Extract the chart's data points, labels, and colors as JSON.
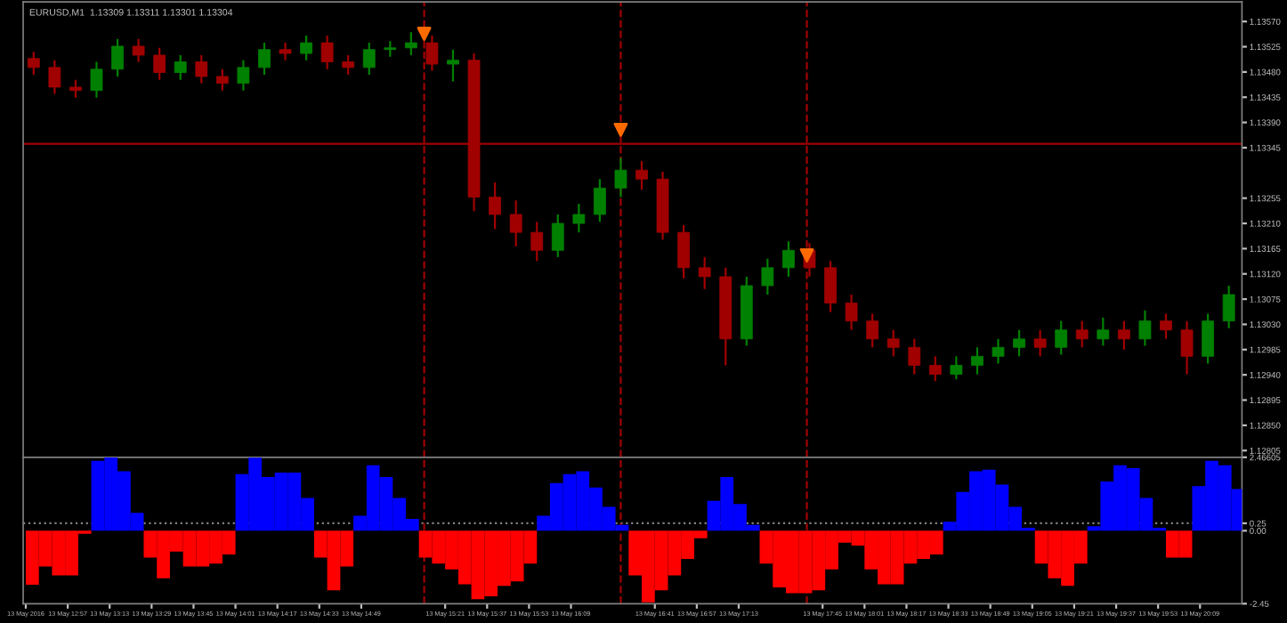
{
  "chart_data": [
    {
      "type": "candlestick",
      "subtitle": "EURUSD,M1  1.13309 1.13311 1.13301 1.13304",
      "x": [
        "2016-05-13T12:44",
        "2016-05-13T12:52",
        "2016-05-13T13:00",
        "2016-05-13T13:08",
        "2016-05-13T13:16",
        "2016-05-13T13:24",
        "2016-05-13T13:32",
        "2016-05-13T13:40",
        "2016-05-13T13:48",
        "2016-05-13T13:56",
        "2016-05-13T14:04",
        "2016-05-13T14:12",
        "2016-05-13T14:20",
        "2016-05-13T14:28",
        "2016-05-13T14:36",
        "2016-05-13T14:44",
        "2016-05-13T14:52",
        "2016-05-13T15:00",
        "2016-05-13T15:08",
        "2016-05-13T15:16",
        "2016-05-13T15:24",
        "2016-05-13T15:32",
        "2016-05-13T15:40",
        "2016-05-13T15:48",
        "2016-05-13T15:56",
        "2016-05-13T16:04",
        "2016-05-13T16:12",
        "2016-05-13T16:20",
        "2016-05-13T16:28",
        "2016-05-13T16:36",
        "2016-05-13T16:44",
        "2016-05-13T16:52",
        "2016-05-13T17:00",
        "2016-05-13T17:08",
        "2016-05-13T17:16",
        "2016-05-13T17:24",
        "2016-05-13T17:32",
        "2016-05-13T17:40",
        "2016-05-13T17:48",
        "2016-05-13T17:56",
        "2016-05-13T18:04",
        "2016-05-13T18:12",
        "2016-05-13T18:20",
        "2016-05-13T18:28",
        "2016-05-13T18:36",
        "2016-05-13T18:44",
        "2016-05-13T18:52",
        "2016-05-13T19:00",
        "2016-05-13T19:08",
        "2016-05-13T19:16",
        "2016-05-13T19:24",
        "2016-05-13T19:32",
        "2016-05-13T19:40",
        "2016-05-13T19:48",
        "2016-05-13T19:56",
        "2016-05-13T20:04",
        "2016-05-13T20:12",
        "2016-05-13T20:20"
      ],
      "ohlc": [
        [
          1.13504,
          1.13516,
          1.13475,
          1.13488
        ],
        [
          1.13488,
          1.13501,
          1.13441,
          1.13453
        ],
        [
          1.13453,
          1.13466,
          1.13434,
          1.13447
        ],
        [
          1.13447,
          1.13498,
          1.13434,
          1.13485
        ],
        [
          1.13485,
          1.13539,
          1.13472,
          1.13526
        ],
        [
          1.13526,
          1.13539,
          1.13498,
          1.1351
        ],
        [
          1.1351,
          1.13523,
          1.13466,
          1.13479
        ],
        [
          1.13479,
          1.1351,
          1.13466,
          1.13498
        ],
        [
          1.13498,
          1.1351,
          1.1346,
          1.13472
        ],
        [
          1.13472,
          1.13485,
          1.13447,
          1.1346
        ],
        [
          1.1346,
          1.13501,
          1.13447,
          1.13488
        ],
        [
          1.13488,
          1.13532,
          1.13475,
          1.1352
        ],
        [
          1.1352,
          1.13532,
          1.13501,
          1.13513
        ],
        [
          1.13513,
          1.13545,
          1.13501,
          1.13532
        ],
        [
          1.13532,
          1.13545,
          1.13485,
          1.13498
        ],
        [
          1.13498,
          1.1351,
          1.13475,
          1.13488
        ],
        [
          1.13488,
          1.13532,
          1.13475,
          1.1352
        ],
        [
          1.1352,
          1.13535,
          1.13507,
          1.13523
        ],
        [
          1.13523,
          1.13551,
          1.1351,
          1.13532
        ],
        [
          1.13532,
          1.13545,
          1.13482,
          1.13494
        ],
        [
          1.13494,
          1.1352,
          1.13463,
          1.13501
        ],
        [
          1.13501,
          1.13513,
          1.13232,
          1.13257
        ],
        [
          1.13257,
          1.13283,
          1.132,
          1.13226
        ],
        [
          1.13226,
          1.13251,
          1.13169,
          1.13194
        ],
        [
          1.13194,
          1.13213,
          1.13143,
          1.13162
        ],
        [
          1.13162,
          1.13226,
          1.1315,
          1.1321
        ],
        [
          1.1321,
          1.13245,
          1.13194,
          1.13226
        ],
        [
          1.13226,
          1.13289,
          1.13213,
          1.13273
        ],
        [
          1.13273,
          1.13327,
          1.13257,
          1.13305
        ],
        [
          1.13305,
          1.13321,
          1.1327,
          1.13289
        ],
        [
          1.13289,
          1.13302,
          1.13181,
          1.13194
        ],
        [
          1.13194,
          1.13207,
          1.13112,
          1.13131
        ],
        [
          1.13131,
          1.1315,
          1.13093,
          1.13115
        ],
        [
          1.13115,
          1.13131,
          1.12957,
          1.13004
        ],
        [
          1.13004,
          1.13115,
          1.12992,
          1.13099
        ],
        [
          1.13099,
          1.13147,
          1.13083,
          1.13131
        ],
        [
          1.13131,
          1.13178,
          1.13115,
          1.13162
        ],
        [
          1.13162,
          1.13175,
          1.13115,
          1.13131
        ],
        [
          1.13131,
          1.13143,
          1.13052,
          1.13068
        ],
        [
          1.13068,
          1.13083,
          1.1302,
          1.13036
        ],
        [
          1.13036,
          1.13049,
          1.12989,
          1.13004
        ],
        [
          1.13004,
          1.1302,
          1.12973,
          1.12989
        ],
        [
          1.12989,
          1.13004,
          1.12941,
          1.12957
        ],
        [
          1.12957,
          1.12973,
          1.12929,
          1.12941
        ],
        [
          1.12941,
          1.12973,
          1.12932,
          1.12957
        ],
        [
          1.12957,
          1.12989,
          1.12941,
          1.12973
        ],
        [
          1.12973,
          1.13004,
          1.1296,
          1.12989
        ],
        [
          1.12989,
          1.1302,
          1.12973,
          1.13004
        ],
        [
          1.13004,
          1.1302,
          1.12973,
          1.12989
        ],
        [
          1.12989,
          1.13036,
          1.12976,
          1.1302
        ],
        [
          1.1302,
          1.13036,
          1.12989,
          1.13004
        ],
        [
          1.13004,
          1.13042,
          1.12992,
          1.1302
        ],
        [
          1.1302,
          1.13036,
          1.12985,
          1.13004
        ],
        [
          1.13004,
          1.13055,
          1.12992,
          1.13036
        ],
        [
          1.13036,
          1.13049,
          1.13004,
          1.1302
        ],
        [
          1.1302,
          1.13036,
          1.12941,
          1.12973
        ],
        [
          1.12973,
          1.13049,
          1.1296,
          1.13036
        ],
        [
          1.13036,
          1.13099,
          1.13023,
          1.13083
        ]
      ],
      "colors": [
        "#a00000",
        "#a00000",
        "#a00000",
        "#008000",
        "#008000",
        "#a00000",
        "#a00000",
        "#008000",
        "#a00000",
        "#a00000",
        "#008000",
        "#008000",
        "#a00000",
        "#008000",
        "#a00000",
        "#a00000",
        "#008000",
        "#008000",
        "#008000",
        "#a00000",
        "#008000",
        "#a00000",
        "#a00000",
        "#a00000",
        "#a00000",
        "#008000",
        "#008000",
        "#008000",
        "#008000",
        "#a00000",
        "#a00000",
        "#a00000",
        "#a00000",
        "#a00000",
        "#008000",
        "#008000",
        "#008000",
        "#a00000",
        "#a00000",
        "#a00000",
        "#a00000",
        "#a00000",
        "#a00000",
        "#a00000",
        "#008000",
        "#008000",
        "#008000",
        "#008000",
        "#a00000",
        "#008000",
        "#a00000",
        "#008000",
        "#a00000",
        "#008000",
        "#a00000",
        "#a00000",
        "#008000",
        "#008000"
      ],
      "series": [
        {
          "type": "scatter",
          "color": "#ff6a00",
          "marker": "triangle",
          "x": [
            "2016-05-13T15:13",
            "2016-05-13T16:28",
            "2016-05-13T17:39"
          ],
          "values": [
            1.13548,
            1.13377,
            1.13153
          ]
        }
      ],
      "xlim": [
        "2016-05-13T12:40",
        "2016-05-13T20:25"
      ],
      "ylim": [
        1.12793,
        1.13605
      ],
      "yticks": [
        {
          "value": 1.1357,
          "label": "1.13570"
        },
        {
          "value": 1.13525,
          "label": "1.13525"
        },
        {
          "value": 1.1348,
          "label": "1.13480"
        },
        {
          "value": 1.13435,
          "label": "1.13435"
        },
        {
          "value": 1.1339,
          "label": "1.13390"
        },
        {
          "value": 1.13345,
          "label": "1.13345"
        },
        {
          "value": 1.13255,
          "label": "1.13255"
        },
        {
          "value": 1.1321,
          "label": "1.13210"
        },
        {
          "value": 1.13165,
          "label": "1.13165"
        },
        {
          "value": 1.1312,
          "label": "1.13120"
        },
        {
          "value": 1.13075,
          "label": "1.13075"
        },
        {
          "value": 1.1303,
          "label": "1.13030"
        },
        {
          "value": 1.12985,
          "label": "1.12985"
        },
        {
          "value": 1.1294,
          "label": "1.12940"
        },
        {
          "value": 1.12895,
          "label": "1.12895"
        },
        {
          "value": 1.1285,
          "label": "1.12850"
        },
        {
          "value": 1.12805,
          "label": "1.12805"
        }
      ],
      "tick_labels": "y",
      "ref_lines": [
        {
          "axis": "y",
          "value": 1.13352,
          "color": "#a00000",
          "line_style": "solid"
        },
        {
          "axis": "x",
          "value": "2016-05-13T15:13",
          "color": "#a00000",
          "line_style": "dashed"
        },
        {
          "axis": "x",
          "value": "2016-05-13T16:28",
          "color": "#a00000",
          "line_style": "dashed"
        },
        {
          "axis": "x",
          "value": "2016-05-13T17:39",
          "color": "#a00000",
          "line_style": "dashed"
        }
      ]
    },
    {
      "type": "bar",
      "x": [
        "2016-05-13T12:41",
        "2016-05-13T12:46",
        "2016-05-13T12:51",
        "2016-05-13T12:56",
        "2016-05-13T13:01",
        "2016-05-13T13:06",
        "2016-05-13T13:11",
        "2016-05-13T13:16",
        "2016-05-13T13:21",
        "2016-05-13T13:26",
        "2016-05-13T13:31",
        "2016-05-13T13:36",
        "2016-05-13T13:41",
        "2016-05-13T13:46",
        "2016-05-13T13:51",
        "2016-05-13T13:56",
        "2016-05-13T14:01",
        "2016-05-13T14:06",
        "2016-05-13T14:11",
        "2016-05-13T14:16",
        "2016-05-13T14:21",
        "2016-05-13T14:26",
        "2016-05-13T14:31",
        "2016-05-13T14:36",
        "2016-05-13T14:41",
        "2016-05-13T14:46",
        "2016-05-13T14:51",
        "2016-05-13T14:56",
        "2016-05-13T15:01",
        "2016-05-13T15:06",
        "2016-05-13T15:11",
        "2016-05-13T15:16",
        "2016-05-13T15:21",
        "2016-05-13T15:26",
        "2016-05-13T15:31",
        "2016-05-13T15:36",
        "2016-05-13T15:41",
        "2016-05-13T15:46",
        "2016-05-13T15:51",
        "2016-05-13T15:56",
        "2016-05-13T16:01",
        "2016-05-13T16:06",
        "2016-05-13T16:11",
        "2016-05-13T16:16",
        "2016-05-13T16:21",
        "2016-05-13T16:26",
        "2016-05-13T16:31",
        "2016-05-13T16:36",
        "2016-05-13T16:41",
        "2016-05-13T16:46",
        "2016-05-13T16:51",
        "2016-05-13T16:56",
        "2016-05-13T17:01",
        "2016-05-13T17:06",
        "2016-05-13T17:11",
        "2016-05-13T17:16",
        "2016-05-13T17:21",
        "2016-05-13T17:26",
        "2016-05-13T17:31",
        "2016-05-13T17:36",
        "2016-05-13T17:41",
        "2016-05-13T17:46",
        "2016-05-13T17:51",
        "2016-05-13T17:56",
        "2016-05-13T18:01",
        "2016-05-13T18:06",
        "2016-05-13T18:11",
        "2016-05-13T18:16",
        "2016-05-13T18:21",
        "2016-05-13T18:26",
        "2016-05-13T18:31",
        "2016-05-13T18:36",
        "2016-05-13T18:41",
        "2016-05-13T18:46",
        "2016-05-13T18:51",
        "2016-05-13T18:56",
        "2016-05-13T19:01",
        "2016-05-13T19:06",
        "2016-05-13T19:11",
        "2016-05-13T19:16",
        "2016-05-13T19:21",
        "2016-05-13T19:26",
        "2016-05-13T19:31",
        "2016-05-13T19:36",
        "2016-05-13T19:41",
        "2016-05-13T19:46",
        "2016-05-13T19:51",
        "2016-05-13T19:56",
        "2016-05-13T20:01",
        "2016-05-13T20:06",
        "2016-05-13T20:11",
        "2016-05-13T20:16",
        "2016-05-13T20:21"
      ],
      "values": [
        -1.81,
        -1.2,
        -1.5,
        -1.5,
        -0.1,
        2.35,
        2.46,
        2.0,
        0.6,
        -0.9,
        -1.6,
        -0.7,
        -1.2,
        -1.2,
        -1.1,
        -0.8,
        1.9,
        2.45,
        1.8,
        1.95,
        1.95,
        1.1,
        -0.9,
        -2.0,
        -1.2,
        0.5,
        2.2,
        1.8,
        1.1,
        0.4,
        -0.9,
        -1.1,
        -1.3,
        -1.8,
        -2.3,
        -2.2,
        -1.85,
        -1.7,
        -1.1,
        0.5,
        1.6,
        1.9,
        2.0,
        1.45,
        0.8,
        0.2,
        -1.5,
        -2.4,
        -2.0,
        -1.5,
        -0.95,
        -0.25,
        1.0,
        1.8,
        0.9,
        0.2,
        -1.1,
        -1.9,
        -2.1,
        -2.1,
        -2.0,
        -1.3,
        -0.4,
        -0.5,
        -1.3,
        -1.8,
        -1.8,
        -1.1,
        -0.95,
        -0.8,
        0.3,
        1.3,
        2.0,
        2.05,
        1.55,
        0.8,
        0.1,
        -1.1,
        -1.6,
        -1.85,
        -1.1,
        0.15,
        1.65,
        2.2,
        2.1,
        1.1,
        0.1,
        -0.9,
        -0.9,
        1.5,
        2.35,
        2.2,
        1.4
      ],
      "colors": [
        "#ff0000",
        "#ff0000",
        "#ff0000",
        "#ff0000",
        "#ff0000",
        "#0000ff",
        "#0000ff",
        "#0000ff",
        "#0000ff",
        "#ff0000",
        "#ff0000",
        "#ff0000",
        "#ff0000",
        "#ff0000",
        "#ff0000",
        "#ff0000",
        "#0000ff",
        "#0000ff",
        "#0000ff",
        "#0000ff",
        "#0000ff",
        "#0000ff",
        "#ff0000",
        "#ff0000",
        "#ff0000",
        "#0000ff",
        "#0000ff",
        "#0000ff",
        "#0000ff",
        "#0000ff",
        "#ff0000",
        "#ff0000",
        "#ff0000",
        "#ff0000",
        "#ff0000",
        "#ff0000",
        "#ff0000",
        "#ff0000",
        "#ff0000",
        "#0000ff",
        "#0000ff",
        "#0000ff",
        "#0000ff",
        "#0000ff",
        "#0000ff",
        "#0000ff",
        "#ff0000",
        "#ff0000",
        "#ff0000",
        "#ff0000",
        "#ff0000",
        "#ff0000",
        "#0000ff",
        "#0000ff",
        "#0000ff",
        "#0000ff",
        "#ff0000",
        "#ff0000",
        "#ff0000",
        "#ff0000",
        "#ff0000",
        "#ff0000",
        "#ff0000",
        "#ff0000",
        "#ff0000",
        "#ff0000",
        "#ff0000",
        "#ff0000",
        "#ff0000",
        "#ff0000",
        "#0000ff",
        "#0000ff",
        "#0000ff",
        "#0000ff",
        "#0000ff",
        "#0000ff",
        "#0000ff",
        "#ff0000",
        "#ff0000",
        "#ff0000",
        "#ff0000",
        "#0000ff",
        "#0000ff",
        "#0000ff",
        "#0000ff",
        "#0000ff",
        "#0000ff",
        "#ff0000",
        "#ff0000",
        "#0000ff",
        "#0000ff",
        "#0000ff",
        "#0000ff"
      ],
      "xlim": [
        "2016-05-13T12:40",
        "2016-05-13T20:25"
      ],
      "xticks": [
        {
          "value": "2016-05-13T12:41",
          "label": "13 May 2016"
        },
        {
          "value": "2016-05-13T12:57",
          "label": "13 May 12:57"
        },
        {
          "value": "2016-05-13T13:13",
          "label": "13 May 13:13"
        },
        {
          "value": "2016-05-13T13:29",
          "label": "13 May 13:29"
        },
        {
          "value": "2016-05-13T13:45",
          "label": "13 May 13:45"
        },
        {
          "value": "2016-05-13T14:01",
          "label": "13 May 14:01"
        },
        {
          "value": "2016-05-13T14:17",
          "label": "13 May 14:17"
        },
        {
          "value": "2016-05-13T14:33",
          "label": "13 May 14:33"
        },
        {
          "value": "2016-05-13T14:49",
          "label": "13 May 14:49"
        },
        {
          "value": "2016-05-13T15:21",
          "label": "13 May 15:21"
        },
        {
          "value": "2016-05-13T15:37",
          "label": "13 May 15:37"
        },
        {
          "value": "2016-05-13T15:53",
          "label": "13 May 15:53"
        },
        {
          "value": "2016-05-13T16:09",
          "label": "13 May 16:09"
        },
        {
          "value": "2016-05-13T16:41",
          "label": "13 May 16:41"
        },
        {
          "value": "2016-05-13T16:57",
          "label": "13 May 16:57"
        },
        {
          "value": "2016-05-13T17:13",
          "label": "13 May 17:13"
        },
        {
          "value": "2016-05-13T17:45",
          "label": "13 May 17:45"
        },
        {
          "value": "2016-05-13T18:01",
          "label": "13 May 18:01"
        },
        {
          "value": "2016-05-13T18:17",
          "label": "13 May 18:17"
        },
        {
          "value": "2016-05-13T18:33",
          "label": "13 May 18:33"
        },
        {
          "value": "2016-05-13T18:49",
          "label": "13 May 18:49"
        },
        {
          "value": "2016-05-13T19:05",
          "label": "13 May 19:05"
        },
        {
          "value": "2016-05-13T19:21",
          "label": "13 May 19:21"
        },
        {
          "value": "2016-05-13T19:37",
          "label": "13 May 19:37"
        },
        {
          "value": "2016-05-13T19:53",
          "label": "13 May 19:53"
        },
        {
          "value": "2016-05-13T20:09",
          "label": "13 May 20:09"
        }
      ],
      "ylim": [
        -2.45,
        2.46605
      ],
      "yticks": [
        {
          "value": 2.46605,
          "label": "2.46605"
        },
        {
          "value": 0.25,
          "label": "0.25"
        },
        {
          "value": 0,
          "label": "0.00"
        },
        {
          "value": -2.45,
          "label": "-2.45"
        }
      ],
      "ref_lines": [
        {
          "axis": "y",
          "value": 0.25,
          "color": "#808080",
          "line_style": "dotted"
        },
        {
          "axis": "x",
          "value": "2016-05-13T15:13",
          "color": "#a00000",
          "line_style": "dashed"
        },
        {
          "axis": "x",
          "value": "2016-05-13T16:28",
          "color": "#a00000",
          "line_style": "dashed"
        },
        {
          "axis": "x",
          "value": "2016-05-13T17:39",
          "color": "#a00000",
          "line_style": "dashed"
        }
      ]
    }
  ]
}
